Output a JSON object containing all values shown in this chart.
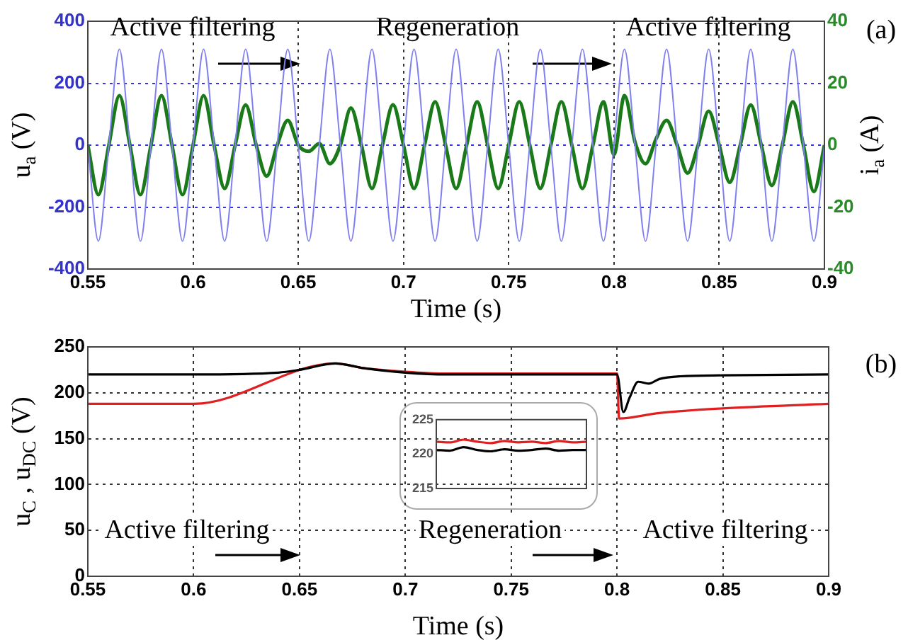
{
  "chart_data": [
    {
      "type": "line",
      "xlabel": "Time (s)",
      "ylabel": "u$_{a}$ (V)",
      "y2label": "i$_{a}$ (A)",
      "annotations": [
        "Active filtering",
        "Regeneration",
        "Active filtering",
        "(a)"
      ],
      "x": [
        0.55,
        0.555,
        0.56,
        0.565,
        0.57,
        0.575,
        0.58,
        0.585,
        0.59,
        0.595,
        0.6,
        0.605,
        0.61,
        0.615,
        0.62,
        0.625,
        0.63,
        0.635,
        0.64,
        0.645,
        0.65,
        0.655,
        0.66,
        0.665,
        0.67,
        0.675,
        0.68,
        0.685,
        0.69,
        0.695,
        0.7,
        0.705,
        0.71,
        0.715,
        0.72,
        0.725,
        0.73,
        0.735,
        0.74,
        0.745,
        0.75,
        0.755,
        0.76,
        0.765,
        0.77,
        0.775,
        0.78,
        0.785,
        0.79,
        0.795,
        0.8,
        0.805,
        0.81,
        0.815,
        0.82,
        0.825,
        0.83,
        0.835,
        0.84,
        0.845,
        0.85,
        0.855,
        0.86,
        0.865,
        0.87,
        0.875,
        0.88,
        0.885,
        0.89,
        0.895,
        0.9
      ],
      "series": [
        {
          "color": "#8080f0",
          "values": [
            0,
            -310,
            0,
            310,
            0,
            -310,
            0,
            310,
            0,
            -310,
            0,
            310,
            0,
            -310,
            0,
            310,
            0,
            -310,
            0,
            310,
            0,
            -310,
            0,
            310,
            0,
            -310,
            0,
            310,
            0,
            -310,
            0,
            310,
            0,
            -310,
            0,
            310,
            0,
            -310,
            0,
            310,
            0,
            -310,
            0,
            310,
            0,
            -310,
            0,
            310,
            0,
            -310,
            0,
            310,
            0,
            -310,
            0,
            310,
            0,
            -310,
            0,
            310,
            0,
            -310,
            0,
            310,
            0,
            -310,
            0,
            310,
            0,
            -310,
            0
          ]
        },
        {
          "color": "#1a7a1a",
          "axis": "y2",
          "values": [
            0,
            -16,
            0,
            16,
            0,
            -16,
            0,
            16,
            0,
            -16,
            0,
            16,
            0,
            -14,
            0,
            13,
            0,
            -10,
            0,
            8,
            0,
            -2,
            0.5,
            -6,
            0,
            12,
            0,
            -14,
            0,
            13,
            0,
            -14,
            0,
            14,
            0,
            -14,
            0,
            14,
            0,
            -14,
            0,
            14,
            0,
            -14,
            0,
            14,
            0,
            -14,
            0,
            14,
            -3,
            16,
            1,
            -6,
            2,
            8,
            0,
            -9,
            0,
            11,
            0,
            -12,
            0,
            13,
            0,
            -13,
            0,
            14,
            0,
            -15,
            0
          ]
        }
      ],
      "xlim": [
        0.55,
        0.9
      ],
      "xticks": [
        0.55,
        0.6,
        0.65,
        0.7,
        0.75,
        0.8,
        0.85,
        0.9
      ],
      "ylim": [
        -400,
        400
      ],
      "yticks": [
        -400,
        -200,
        0,
        200,
        400
      ],
      "y2lim": [
        -40,
        40
      ],
      "y2ticks": [
        -40,
        -20,
        0,
        20,
        40
      ],
      "grid": true,
      "marker": "none",
      "line_style": "solid"
    },
    {
      "type": "line",
      "xlabel": "Time (s)",
      "ylabel": "u$_{C}$ , u$_{DC}$ (V)",
      "annotations": [
        "Active filtering",
        "Regeneration",
        "Active filtering",
        "(b)"
      ],
      "series": [
        {
          "color": "#000000",
          "x": [
            0.55,
            0.6,
            0.64,
            0.65,
            0.667,
            0.68,
            0.7,
            0.72,
            0.8,
            0.803,
            0.806,
            0.81,
            0.815,
            0.82,
            0.83,
            0.85,
            0.9
          ],
          "values": [
            220,
            220,
            222,
            225,
            232,
            227,
            222,
            220,
            220,
            179,
            195,
            212,
            210,
            215,
            218,
            219,
            220
          ]
        },
        {
          "color": "#e02020",
          "x": [
            0.55,
            0.6,
            0.667,
            0.68,
            0.7,
            0.72,
            0.8,
            0.801,
            0.82,
            0.85,
            0.9
          ],
          "values": [
            188,
            188,
            232,
            227,
            223,
            221,
            221,
            172,
            178,
            183,
            188
          ]
        }
      ],
      "xlim": [
        0.55,
        0.9
      ],
      "xticks": [
        0.55,
        0.6,
        0.65,
        0.7,
        0.75,
        0.8,
        0.85,
        0.9
      ],
      "ylim": [
        0,
        250
      ],
      "yticks": [
        0,
        50,
        100,
        150,
        200,
        250
      ],
      "grid": true,
      "marker": "none",
      "line_style": "solid"
    },
    {
      "type": "line",
      "categories": [
        null,
        null,
        null,
        null,
        null,
        null,
        null,
        null,
        null,
        null,
        null,
        null
      ],
      "series": [
        {
          "color": "#e02020",
          "values": [
            221.8,
            221.7,
            222.1,
            221.8,
            221.6,
            221.9,
            221.7,
            221.8,
            221.6,
            221.9,
            221.7,
            221.8
          ]
        },
        {
          "color": "#000000",
          "values": [
            220.6,
            220.5,
            221.0,
            220.6,
            220.4,
            220.7,
            220.5,
            220.6,
            220.8,
            220.5,
            220.6,
            220.6
          ]
        }
      ],
      "ylim": [
        215,
        225
      ],
      "yticks": [
        215,
        220,
        225
      ],
      "tick_labels": "y",
      "marker": "none",
      "line_style": "solid"
    }
  ]
}
